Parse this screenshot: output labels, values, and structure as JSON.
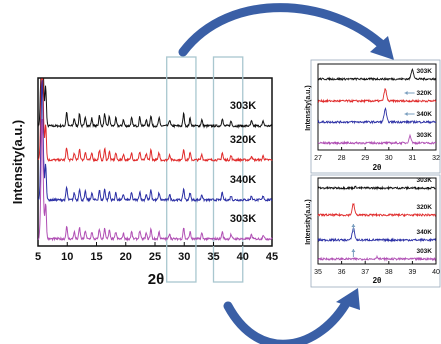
{
  "figure": {
    "arrow_color": "#3a5fa6",
    "box_color": "#a9c7cf"
  },
  "chart_data": [
    {
      "type": "line",
      "xlabel": "2θ",
      "ylabel": "Intensity(a.u.)",
      "xlim": [
        5,
        45
      ],
      "xticks": [
        "5",
        "10",
        "15",
        "20",
        "25",
        "30",
        "35",
        "40",
        "45"
      ],
      "highlight_ranges": [
        [
          27,
          32
        ],
        [
          35,
          40
        ]
      ],
      "series": [
        {
          "name": "303K",
          "color": "#111111",
          "offset": 4
        },
        {
          "name": "320K",
          "color": "#e02a2a",
          "offset": 3
        },
        {
          "name": "340K",
          "color": "#2b2fa5",
          "offset": 2
        },
        {
          "name": "303K",
          "color": "#b04fb4",
          "offset": 1
        }
      ],
      "peaks": [
        [
          5.7,
          100
        ],
        [
          6.3,
          30
        ],
        [
          9.9,
          9
        ],
        [
          11.2,
          5
        ],
        [
          12.1,
          8
        ],
        [
          13.1,
          6
        ],
        [
          14.2,
          5
        ],
        [
          15.5,
          7
        ],
        [
          16.4,
          8
        ],
        [
          17.2,
          6
        ],
        [
          18.3,
          5
        ],
        [
          19.6,
          4
        ],
        [
          21.0,
          5
        ],
        [
          22.4,
          6
        ],
        [
          23.5,
          4
        ],
        [
          24.3,
          7
        ],
        [
          25.7,
          5
        ],
        [
          27.5,
          4
        ],
        [
          29.9,
          8
        ],
        [
          31.0,
          5
        ],
        [
          33.0,
          4
        ],
        [
          36.5,
          5
        ],
        [
          38.0,
          3
        ],
        [
          41.5,
          3
        ],
        [
          43.5,
          3
        ]
      ]
    },
    {
      "type": "line",
      "xlabel": "2θ",
      "ylabel": "Intensity(a.u.)",
      "xlim": [
        27,
        32
      ],
      "xticks": [
        "27",
        "28",
        "29",
        "30",
        "31",
        "32"
      ],
      "series": [
        {
          "name": "303K",
          "color": "#111111",
          "peak_x": 31.0,
          "peak_h": 10
        },
        {
          "name": "320K",
          "color": "#e02a2a",
          "peak_x": 29.85,
          "peak_h": 12
        },
        {
          "name": "340K",
          "color": "#2b2fa5",
          "peak_x": 29.85,
          "peak_h": 13
        },
        {
          "name": "303K",
          "color": "#b04fb4",
          "peak_x": 30.9,
          "peak_h": 7
        }
      ],
      "arrows_at": [
        30.5,
        30.5
      ]
    },
    {
      "type": "line",
      "xlabel": "2θ",
      "ylabel": "Intensity(a.u.)",
      "xlim": [
        35,
        40
      ],
      "xticks": [
        "35",
        "36",
        "37",
        "38",
        "39",
        "40"
      ],
      "series": [
        {
          "name": "303K",
          "color": "#111111",
          "peak_x": 36.6,
          "peak_h": 1
        },
        {
          "name": "320K",
          "color": "#e02a2a",
          "peak_x": 36.5,
          "peak_h": 11
        },
        {
          "name": "340K",
          "color": "#2b2fa5",
          "peak_x": 36.5,
          "peak_h": 12
        },
        {
          "name": "303K",
          "color": "#b04fb4",
          "peak_x": 37.5,
          "peak_h": 2
        }
      ],
      "arrows_at": [
        36.5,
        36.5
      ]
    }
  ]
}
